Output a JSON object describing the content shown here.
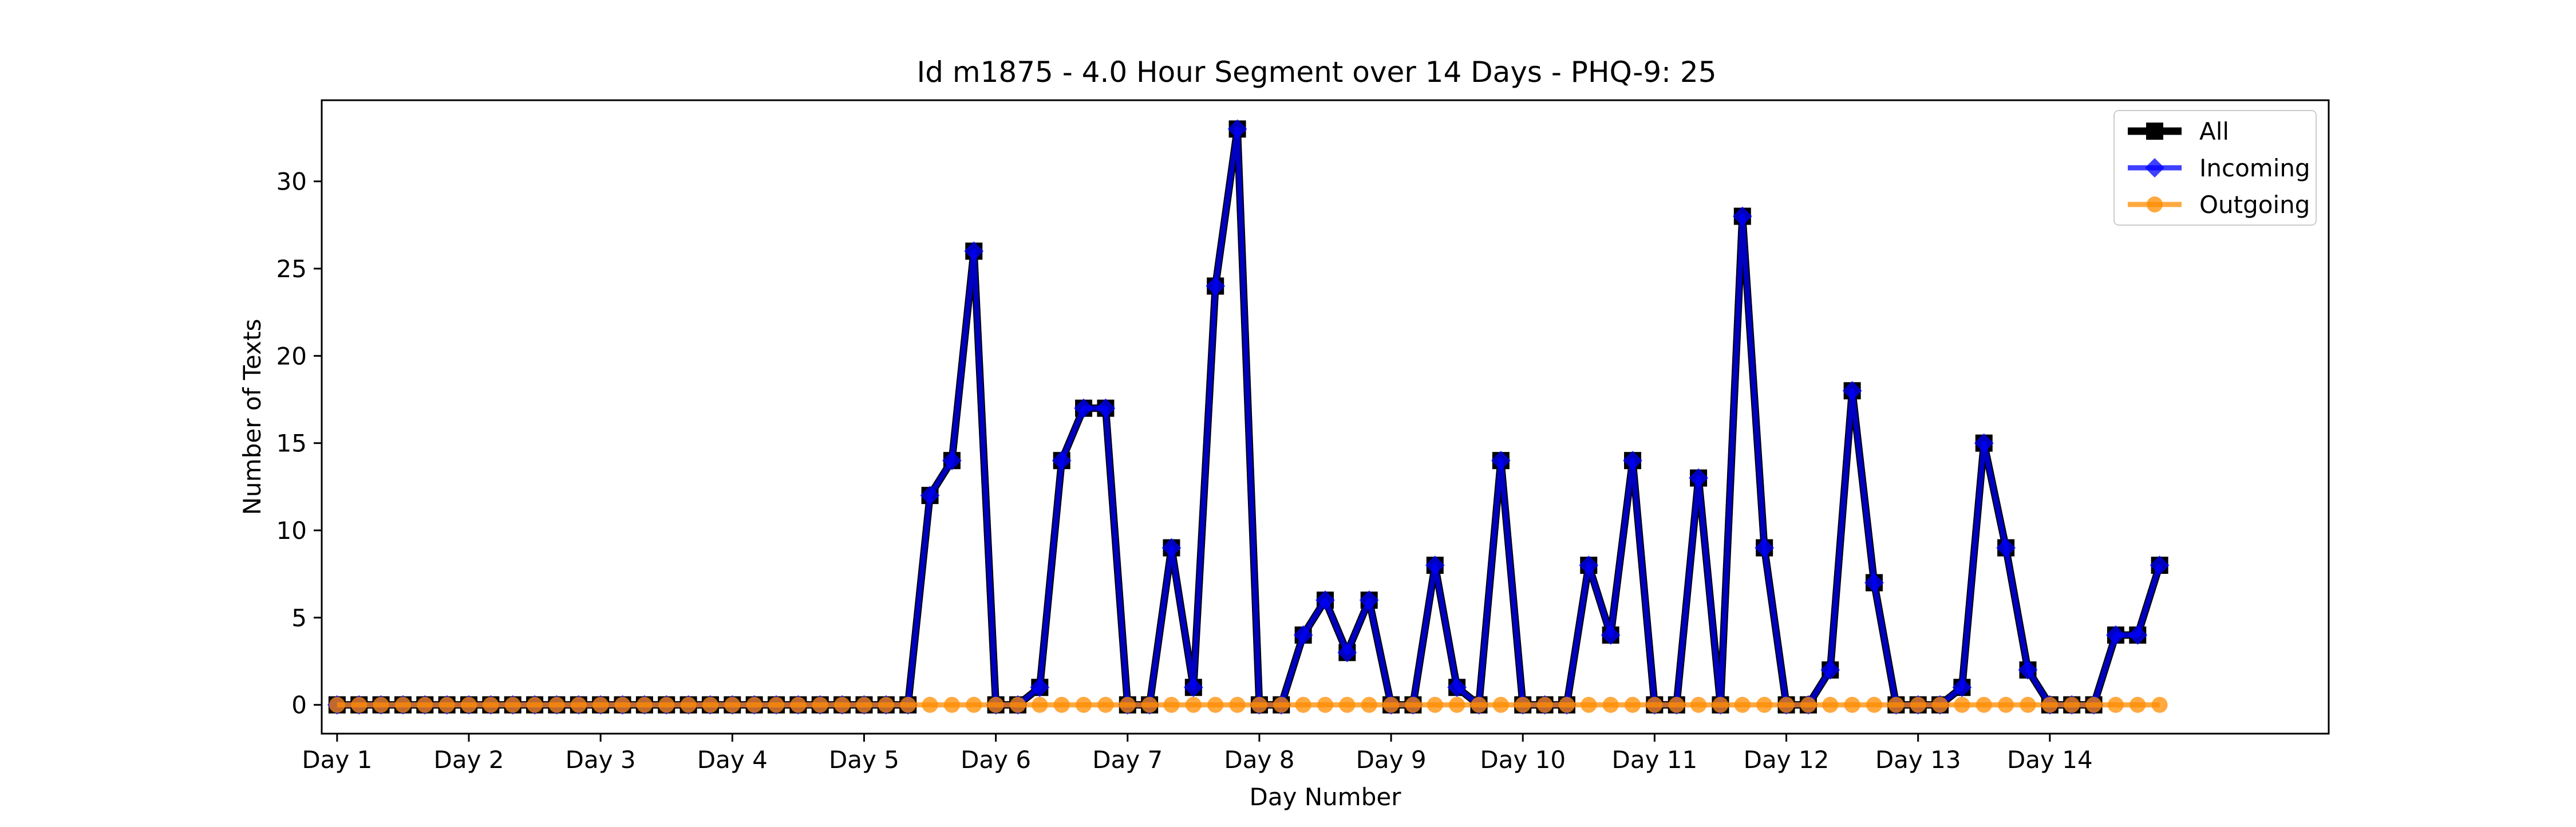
{
  "chart_data": {
    "type": "line",
    "title": "Id m1875 - 4.0 Hour Segment over 14 Days - PHQ-9: 25",
    "xlabel": "Day Number",
    "ylabel": "Number of Texts",
    "xlim": [
      -0.7,
      90.7
    ],
    "ylim": [
      -1.65,
      34.65
    ],
    "x_ticks": [
      {
        "value": 0,
        "label": "Day 1"
      },
      {
        "value": 6,
        "label": "Day 2"
      },
      {
        "value": 12,
        "label": "Day 3"
      },
      {
        "value": 18,
        "label": "Day 4"
      },
      {
        "value": 24,
        "label": "Day 5"
      },
      {
        "value": 30,
        "label": "Day 6"
      },
      {
        "value": 36,
        "label": "Day 7"
      },
      {
        "value": 42,
        "label": "Day 8"
      },
      {
        "value": 48,
        "label": "Day 9"
      },
      {
        "value": 54,
        "label": "Day 10"
      },
      {
        "value": 60,
        "label": "Day 11"
      },
      {
        "value": 66,
        "label": "Day 12"
      },
      {
        "value": 72,
        "label": "Day 13"
      },
      {
        "value": 78,
        "label": "Day 14"
      }
    ],
    "y_ticks": [
      0,
      5,
      10,
      15,
      20,
      25,
      30
    ],
    "grid": false,
    "legend": "top-right",
    "series": [
      {
        "name": "All",
        "color": "#000000",
        "marker": "square",
        "values": [
          0,
          0,
          0,
          0,
          0,
          0,
          0,
          0,
          0,
          0,
          0,
          0,
          0,
          0,
          0,
          0,
          0,
          0,
          0,
          0,
          0,
          0,
          0,
          0,
          0,
          0,
          0,
          12,
          14,
          26,
          0,
          0,
          1,
          14,
          17,
          17,
          0,
          0,
          9,
          1,
          24,
          33,
          0,
          0,
          4,
          6,
          3,
          6,
          0,
          0,
          8,
          1,
          0,
          14,
          0,
          0,
          0,
          8,
          4,
          14,
          0,
          0,
          13,
          0,
          28,
          9,
          0,
          0,
          2,
          18,
          7,
          0,
          0,
          0,
          1,
          15,
          9,
          2,
          0,
          0,
          0,
          4,
          4,
          8
        ]
      },
      {
        "name": "Incoming",
        "color": "#0000ff",
        "marker": "diamond",
        "values": [
          0,
          0,
          0,
          0,
          0,
          0,
          0,
          0,
          0,
          0,
          0,
          0,
          0,
          0,
          0,
          0,
          0,
          0,
          0,
          0,
          0,
          0,
          0,
          0,
          0,
          0,
          0,
          12,
          14,
          26,
          0,
          0,
          1,
          14,
          17,
          17,
          0,
          0,
          9,
          1,
          24,
          33,
          0,
          0,
          4,
          6,
          3,
          6,
          0,
          0,
          8,
          1,
          0,
          14,
          0,
          0,
          0,
          8,
          4,
          14,
          0,
          0,
          13,
          0,
          28,
          9,
          0,
          0,
          2,
          18,
          7,
          0,
          0,
          0,
          1,
          15,
          9,
          2,
          0,
          0,
          0,
          4,
          4,
          8
        ]
      },
      {
        "name": "Outgoing",
        "color": "#ff8c00",
        "marker": "circle",
        "values": [
          0,
          0,
          0,
          0,
          0,
          0,
          0,
          0,
          0,
          0,
          0,
          0,
          0,
          0,
          0,
          0,
          0,
          0,
          0,
          0,
          0,
          0,
          0,
          0,
          0,
          0,
          0,
          0,
          0,
          0,
          0,
          0,
          0,
          0,
          0,
          0,
          0,
          0,
          0,
          0,
          0,
          0,
          0,
          0,
          0,
          0,
          0,
          0,
          0,
          0,
          0,
          0,
          0,
          0,
          0,
          0,
          0,
          0,
          0,
          0,
          0,
          0,
          0,
          0,
          0,
          0,
          0,
          0,
          0,
          0,
          0,
          0,
          0,
          0,
          0,
          0,
          0,
          0,
          0,
          0,
          0,
          0,
          0,
          0
        ]
      }
    ]
  }
}
